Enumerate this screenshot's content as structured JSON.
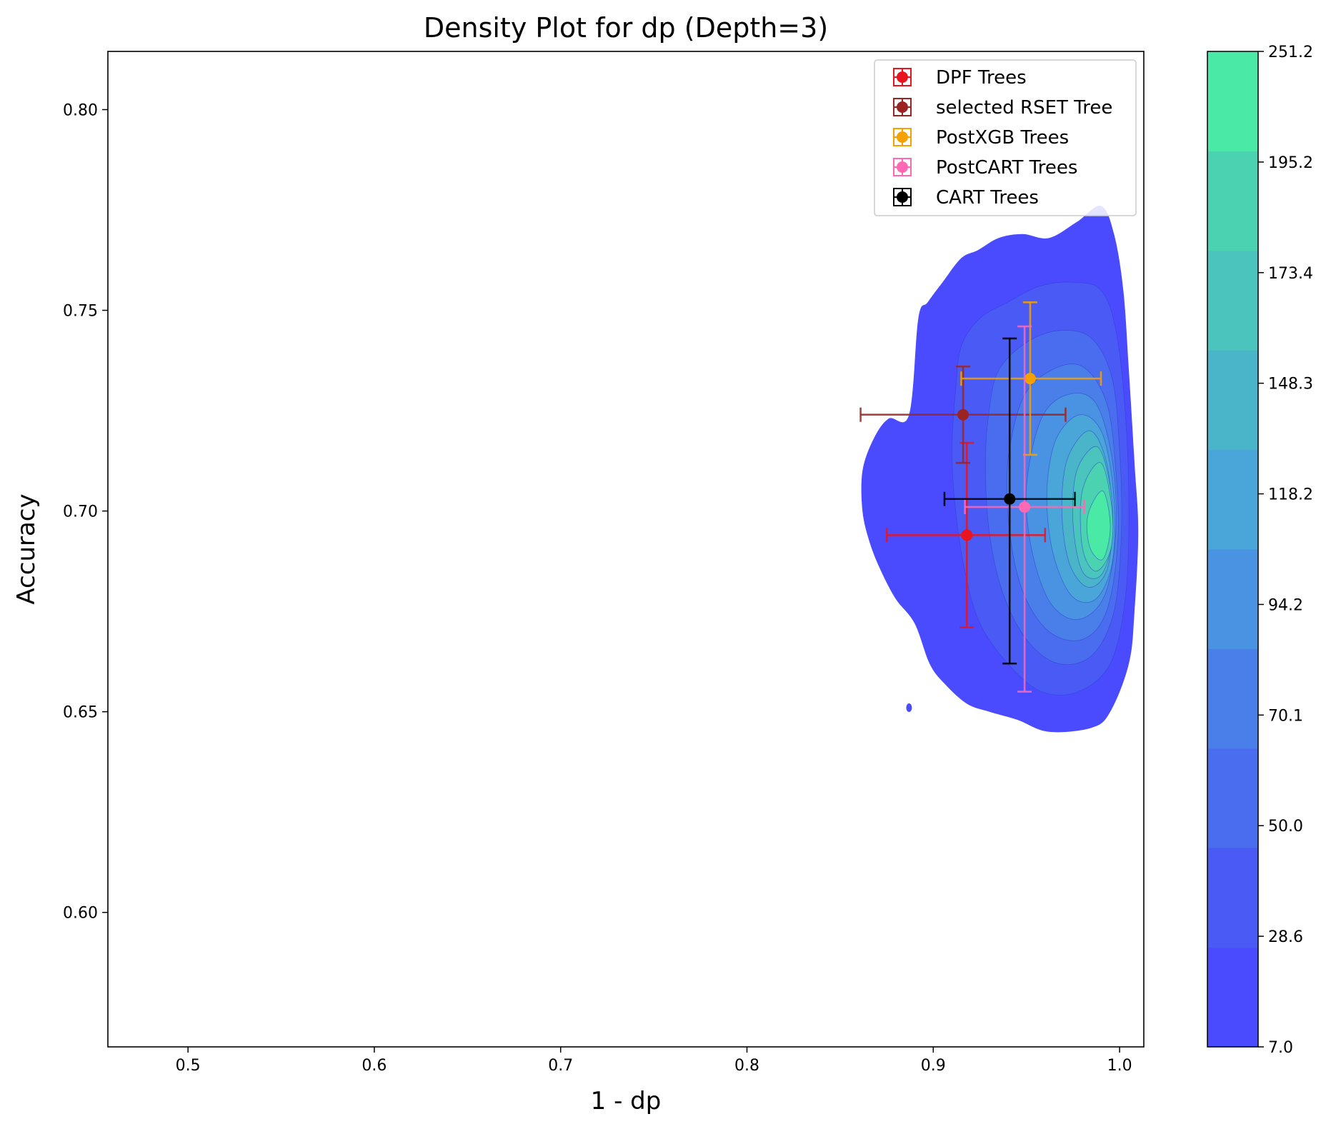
{
  "chart_data": {
    "type": "scatter",
    "title": "Density Plot for dp (Depth=3)",
    "xlabel": "1 - dp",
    "ylabel": "Accuracy",
    "xlim": [
      0.457,
      1.013
    ],
    "ylim": [
      0.5665,
      0.8145
    ],
    "xticks": [
      0.5,
      0.6,
      0.7,
      0.8,
      0.9,
      1.0
    ],
    "xtick_labels": [
      "0.5",
      "0.6",
      "0.7",
      "0.8",
      "0.9",
      "1.0"
    ],
    "yticks": [
      0.6,
      0.65,
      0.7,
      0.75,
      0.8
    ],
    "ytick_labels": [
      "0.60",
      "0.65",
      "0.70",
      "0.75",
      "0.80"
    ],
    "grid": false,
    "legend_position": "top-right",
    "density": {
      "description_kind": "filled contour (KDE)",
      "levels": [
        7.0,
        28.6,
        50.0,
        70.1,
        94.2,
        118.2,
        148.3,
        173.4,
        195.2,
        251.2
      ],
      "level_labels": [
        "7.0",
        "28.6",
        "50.0",
        "70.1",
        "94.2",
        "118.2",
        "148.3",
        "173.4",
        "195.2",
        "251.2"
      ],
      "colors": [
        "#4a4aff",
        "#4a5bf5",
        "#4a6cee",
        "#4a7ee8",
        "#4a92e2",
        "#4aa5d8",
        "#4ab4c9",
        "#4ac4bd",
        "#4ad2b1",
        "#4aeaa6"
      ],
      "contours": [
        [
          [
            0.887,
            0.724
          ],
          [
            0.892,
            0.748
          ],
          [
            0.897,
            0.752
          ],
          [
            0.905,
            0.757
          ],
          [
            0.915,
            0.763
          ],
          [
            0.924,
            0.765
          ],
          [
            0.935,
            0.768
          ],
          [
            0.948,
            0.769
          ],
          [
            0.962,
            0.768
          ],
          [
            0.977,
            0.772
          ],
          [
            0.99,
            0.776
          ],
          [
            0.997,
            0.769
          ],
          [
            1.002,
            0.755
          ],
          [
            1.005,
            0.735
          ],
          [
            1.008,
            0.712
          ],
          [
            1.01,
            0.695
          ],
          [
            1.008,
            0.675
          ],
          [
            1.005,
            0.662
          ],
          [
            0.995,
            0.65
          ],
          [
            0.985,
            0.646
          ],
          [
            0.962,
            0.645
          ],
          [
            0.945,
            0.648
          ],
          [
            0.93,
            0.65
          ],
          [
            0.918,
            0.652
          ],
          [
            0.906,
            0.657
          ],
          [
            0.898,
            0.662
          ],
          [
            0.89,
            0.672
          ],
          [
            0.88,
            0.678
          ],
          [
            0.872,
            0.685
          ],
          [
            0.866,
            0.692
          ],
          [
            0.862,
            0.7
          ],
          [
            0.862,
            0.71
          ],
          [
            0.868,
            0.718
          ],
          [
            0.876,
            0.723
          ]
        ],
        [
          [
            0.915,
            0.741
          ],
          [
            0.925,
            0.748
          ],
          [
            0.94,
            0.752
          ],
          [
            0.957,
            0.756
          ],
          [
            0.975,
            0.757
          ],
          [
            0.99,
            0.755
          ],
          [
            0.998,
            0.745
          ],
          [
            1.003,
            0.725
          ],
          [
            1.005,
            0.7
          ],
          [
            1.003,
            0.678
          ],
          [
            0.995,
            0.662
          ],
          [
            0.978,
            0.655
          ],
          [
            0.958,
            0.655
          ],
          [
            0.94,
            0.662
          ],
          [
            0.925,
            0.672
          ],
          [
            0.917,
            0.685
          ],
          [
            0.912,
            0.7
          ],
          [
            0.91,
            0.715
          ],
          [
            0.912,
            0.73
          ]
        ],
        [
          [
            0.935,
            0.735
          ],
          [
            0.95,
            0.742
          ],
          [
            0.968,
            0.745
          ],
          [
            0.985,
            0.743
          ],
          [
            0.996,
            0.733
          ],
          [
            1.0,
            0.715
          ],
          [
            1.001,
            0.695
          ],
          [
            0.997,
            0.675
          ],
          [
            0.985,
            0.664
          ],
          [
            0.967,
            0.662
          ],
          [
            0.95,
            0.668
          ],
          [
            0.937,
            0.68
          ],
          [
            0.93,
            0.695
          ],
          [
            0.928,
            0.712
          ],
          [
            0.93,
            0.725
          ]
        ],
        [
          [
            0.948,
            0.728
          ],
          [
            0.963,
            0.735
          ],
          [
            0.98,
            0.736
          ],
          [
            0.993,
            0.727
          ],
          [
            0.998,
            0.71
          ],
          [
            0.999,
            0.692
          ],
          [
            0.993,
            0.675
          ],
          [
            0.98,
            0.668
          ],
          [
            0.962,
            0.67
          ],
          [
            0.948,
            0.68
          ],
          [
            0.941,
            0.695
          ],
          [
            0.94,
            0.712
          ]
        ],
        [
          [
            0.958,
            0.723
          ],
          [
            0.972,
            0.729
          ],
          [
            0.987,
            0.727
          ],
          [
            0.996,
            0.713
          ],
          [
            0.998,
            0.695
          ],
          [
            0.992,
            0.679
          ],
          [
            0.978,
            0.673
          ],
          [
            0.963,
            0.677
          ],
          [
            0.953,
            0.69
          ],
          [
            0.95,
            0.706
          ]
        ],
        [
          [
            0.966,
            0.718
          ],
          [
            0.979,
            0.724
          ],
          [
            0.991,
            0.719
          ],
          [
            0.997,
            0.703
          ],
          [
            0.996,
            0.687
          ],
          [
            0.987,
            0.678
          ],
          [
            0.974,
            0.679
          ],
          [
            0.964,
            0.69
          ],
          [
            0.961,
            0.705
          ]
        ],
        [
          [
            0.972,
            0.713
          ],
          [
            0.984,
            0.72
          ],
          [
            0.993,
            0.712
          ],
          [
            0.996,
            0.697
          ],
          [
            0.993,
            0.685
          ],
          [
            0.983,
            0.681
          ],
          [
            0.973,
            0.687
          ],
          [
            0.969,
            0.7
          ]
        ],
        [
          [
            0.977,
            0.71
          ],
          [
            0.988,
            0.716
          ],
          [
            0.995,
            0.706
          ],
          [
            0.996,
            0.693
          ],
          [
            0.99,
            0.684
          ],
          [
            0.98,
            0.685
          ],
          [
            0.975,
            0.697
          ]
        ],
        [
          [
            0.98,
            0.705
          ],
          [
            0.99,
            0.712
          ],
          [
            0.996,
            0.7
          ],
          [
            0.995,
            0.69
          ],
          [
            0.987,
            0.685
          ],
          [
            0.98,
            0.691
          ]
        ],
        [
          [
            0.983,
            0.699
          ],
          [
            0.991,
            0.705
          ],
          [
            0.995,
            0.696
          ],
          [
            0.991,
            0.688
          ],
          [
            0.984,
            0.691
          ]
        ]
      ],
      "islands": [
        [
          0.887,
          0.651
        ]
      ]
    },
    "series": [
      {
        "name": "DPF Trees",
        "color": "#e8141e",
        "x": 0.918,
        "y": 0.694,
        "xerr": [
          0.875,
          0.96
        ],
        "yerr": [
          0.671,
          0.717
        ]
      },
      {
        "name": "selected RSET Tree",
        "color": "#9b2423",
        "x": 0.916,
        "y": 0.724,
        "xerr": [
          0.861,
          0.971
        ],
        "yerr": [
          0.712,
          0.736
        ]
      },
      {
        "name": "PostXGB Trees",
        "color": "#f5a100",
        "x": 0.952,
        "y": 0.733,
        "xerr": [
          0.915,
          0.99
        ],
        "yerr": [
          0.714,
          0.752
        ]
      },
      {
        "name": "PostCART Trees",
        "color": "#ff69b4",
        "x": 0.949,
        "y": 0.701,
        "xerr": [
          0.917,
          0.981
        ],
        "yerr": [
          0.655,
          0.746
        ]
      },
      {
        "name": "CART Trees",
        "color": "#000000",
        "x": 0.941,
        "y": 0.703,
        "xerr": [
          0.906,
          0.976
        ],
        "yerr": [
          0.662,
          0.743
        ]
      }
    ]
  }
}
